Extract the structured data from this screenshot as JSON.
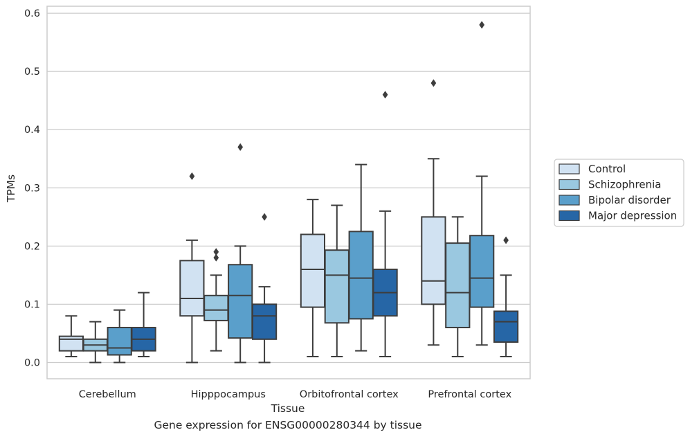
{
  "caption": "Gene expression for ENSG00000280344 by tissue",
  "chart_data": {
    "type": "boxplot",
    "xlabel": "Tissue",
    "ylabel": "TPMs",
    "ylim": [
      -0.028,
      0.612
    ],
    "yticks": [
      "0.0",
      "0.1",
      "0.2",
      "0.3",
      "0.4",
      "0.5",
      "0.6"
    ],
    "grid": "horizontal",
    "legend_position": "right",
    "categories": [
      "Cerebellum",
      "Hipppocampus",
      "Orbitofrontal cortex",
      "Prefrontal cortex"
    ],
    "series": [
      {
        "name": "Control",
        "color": "#d1e2f2",
        "boxes": [
          {
            "whislo": 0.01,
            "q1": 0.02,
            "med": 0.04,
            "q3": 0.045,
            "whishi": 0.08,
            "fliers": []
          },
          {
            "whislo": 0.0,
            "q1": 0.08,
            "med": 0.11,
            "q3": 0.175,
            "whishi": 0.21,
            "fliers": [
              0.32
            ]
          },
          {
            "whislo": 0.01,
            "q1": 0.095,
            "med": 0.16,
            "q3": 0.22,
            "whishi": 0.28,
            "fliers": []
          },
          {
            "whislo": 0.03,
            "q1": 0.1,
            "med": 0.14,
            "q3": 0.25,
            "whishi": 0.35,
            "fliers": [
              0.48
            ]
          }
        ]
      },
      {
        "name": "Schizophrenia",
        "color": "#9ac8e0",
        "boxes": [
          {
            "whislo": 0.0,
            "q1": 0.02,
            "med": 0.03,
            "q3": 0.04,
            "whishi": 0.07,
            "fliers": []
          },
          {
            "whislo": 0.02,
            "q1": 0.072,
            "med": 0.09,
            "q3": 0.115,
            "whishi": 0.15,
            "fliers": [
              0.18,
              0.19
            ]
          },
          {
            "whislo": 0.01,
            "q1": 0.068,
            "med": 0.15,
            "q3": 0.193,
            "whishi": 0.27,
            "fliers": []
          },
          {
            "whislo": 0.01,
            "q1": 0.06,
            "med": 0.12,
            "q3": 0.205,
            "whishi": 0.25,
            "fliers": []
          }
        ]
      },
      {
        "name": "Bipolar disorder",
        "color": "#5a9fcb",
        "boxes": [
          {
            "whislo": 0.0,
            "q1": 0.013,
            "med": 0.025,
            "q3": 0.06,
            "whishi": 0.09,
            "fliers": []
          },
          {
            "whislo": 0.0,
            "q1": 0.042,
            "med": 0.115,
            "q3": 0.168,
            "whishi": 0.2,
            "fliers": [
              0.37
            ]
          },
          {
            "whislo": 0.02,
            "q1": 0.075,
            "med": 0.145,
            "q3": 0.225,
            "whishi": 0.34,
            "fliers": []
          },
          {
            "whislo": 0.03,
            "q1": 0.095,
            "med": 0.145,
            "q3": 0.218,
            "whishi": 0.32,
            "fliers": [
              0.58
            ]
          }
        ]
      },
      {
        "name": "Major depression",
        "color": "#2666a6",
        "boxes": [
          {
            "whislo": 0.01,
            "q1": 0.02,
            "med": 0.04,
            "q3": 0.06,
            "whishi": 0.12,
            "fliers": []
          },
          {
            "whislo": 0.0,
            "q1": 0.04,
            "med": 0.08,
            "q3": 0.1,
            "whishi": 0.13,
            "fliers": [
              0.25
            ]
          },
          {
            "whislo": 0.01,
            "q1": 0.08,
            "med": 0.12,
            "q3": 0.16,
            "whishi": 0.26,
            "fliers": [
              0.46
            ]
          },
          {
            "whislo": 0.01,
            "q1": 0.035,
            "med": 0.07,
            "q3": 0.088,
            "whishi": 0.15,
            "fliers": [
              0.21
            ]
          }
        ]
      }
    ]
  }
}
